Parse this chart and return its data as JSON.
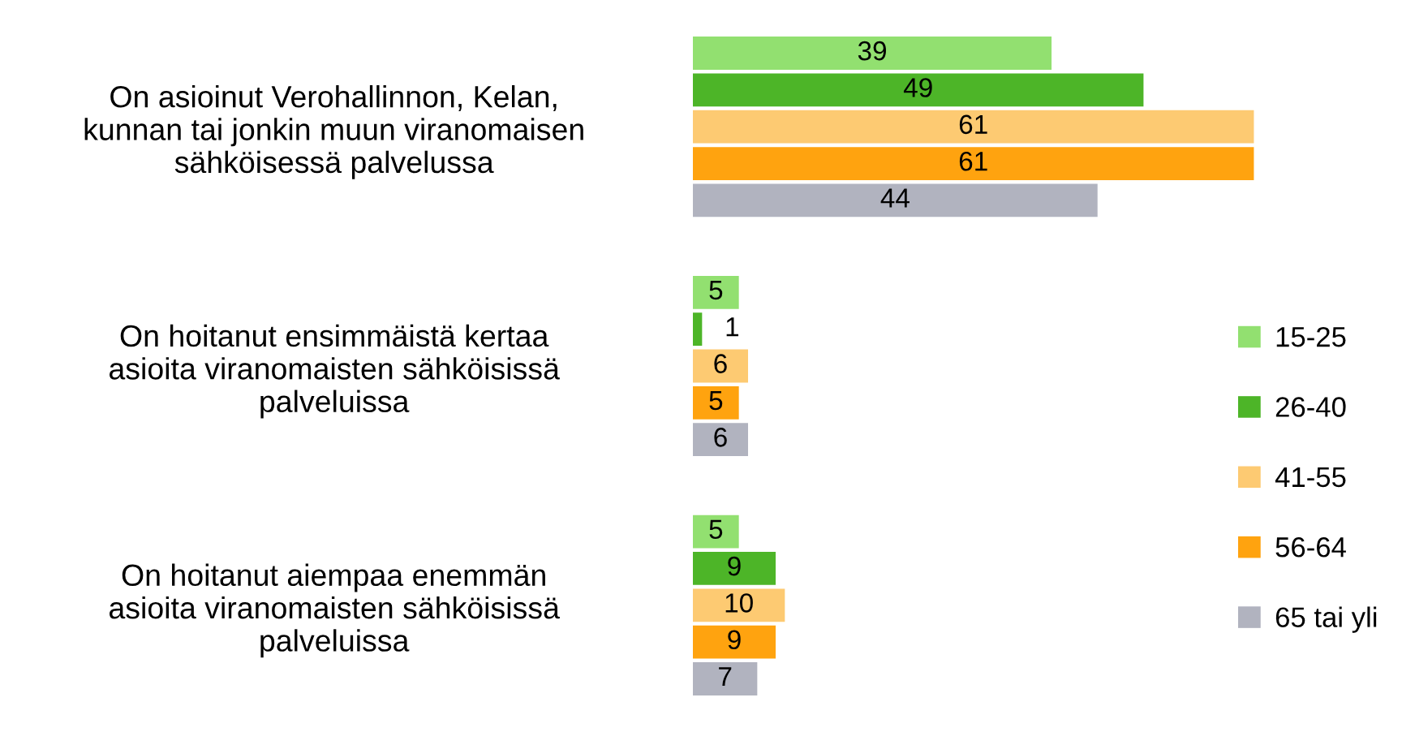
{
  "chart_data": {
    "type": "bar",
    "orientation": "horizontal",
    "categories": [
      "On asioinut Verohallinnon, Kelan,\nkunnan tai jonkin muun viranomaisen\nsähköisessä palvelussa",
      "On hoitanut ensimmäistä kertaa\nasioita viranomaisten sähköisissä\npalveluissa",
      "On hoitanut aiempaa enemmän\nasioita viranomaisten sähköisissä\npalveluissa"
    ],
    "series": [
      {
        "name": "15-25",
        "color": "#92e070",
        "values": [
          39,
          5,
          5
        ]
      },
      {
        "name": "26-40",
        "color": "#4db528",
        "values": [
          49,
          1,
          9
        ]
      },
      {
        "name": "41-55",
        "color": "#fdca72",
        "values": [
          61,
          6,
          10
        ]
      },
      {
        "name": "56-64",
        "color": "#ffa30f",
        "values": [
          61,
          5,
          9
        ]
      },
      {
        "name": "65 tai yli",
        "color": "#b1b3bf",
        "values": [
          44,
          6,
          7
        ]
      }
    ],
    "data_labels": true,
    "legend": "right",
    "grid": false,
    "tick_labels": "y"
  }
}
